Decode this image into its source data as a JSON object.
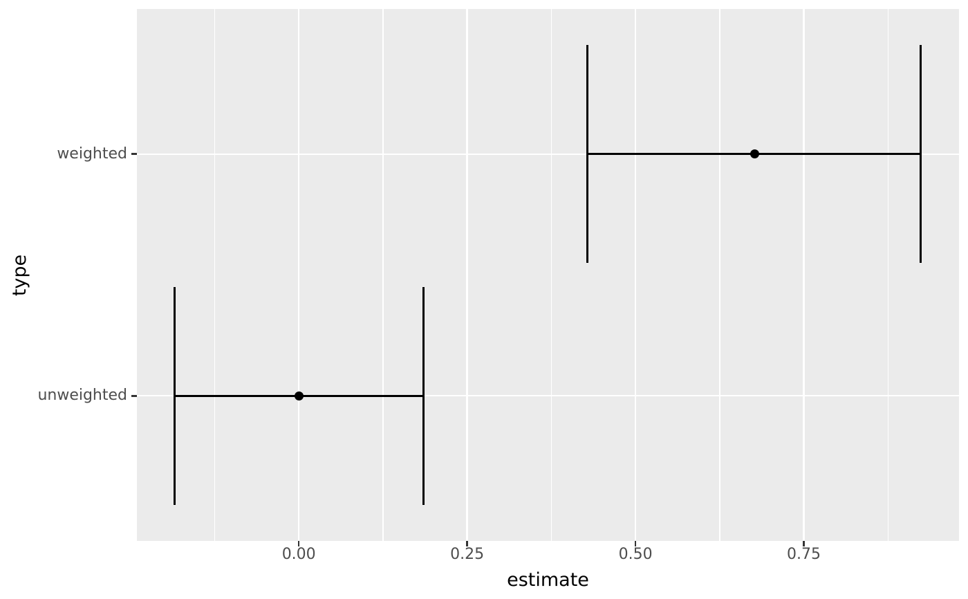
{
  "chart_data": {
    "type": "scatter",
    "subtype": "pointrange-errorbar-horizontal",
    "title": "",
    "xlabel": "estimate",
    "ylabel": "type",
    "xlim": [
      -0.2405,
      0.9805
    ],
    "ylim": [
      0.4,
      2.6
    ],
    "x_major_ticks": [
      {
        "value": 0.0,
        "label": "0.00"
      },
      {
        "value": 0.25,
        "label": "0.25"
      },
      {
        "value": 0.5,
        "label": "0.50"
      },
      {
        "value": 0.75,
        "label": "0.75"
      }
    ],
    "x_minor_ticks": [
      -0.125,
      0.125,
      0.375,
      0.625,
      0.875
    ],
    "categories": [
      {
        "label": "weighted",
        "position": 2
      },
      {
        "label": "unweighted",
        "position": 1
      }
    ],
    "series": [
      {
        "category": "weighted",
        "estimate": 0.677,
        "ci_low": 0.429,
        "ci_high": 0.924
      },
      {
        "category": "unweighted",
        "estimate": 0.0,
        "ci_low": -0.185,
        "ci_high": 0.185
      }
    ],
    "errorbar_half_height": 0.45,
    "grid": true,
    "legend": false
  },
  "colors": {
    "background": "#FFFFFF",
    "panel_background": "#EBEBEB",
    "gridline": "#FFFFFF",
    "data": "#000000",
    "tick_mark": "#333333",
    "tick_label": "#4D4D4D",
    "axis_title": "#000000"
  }
}
